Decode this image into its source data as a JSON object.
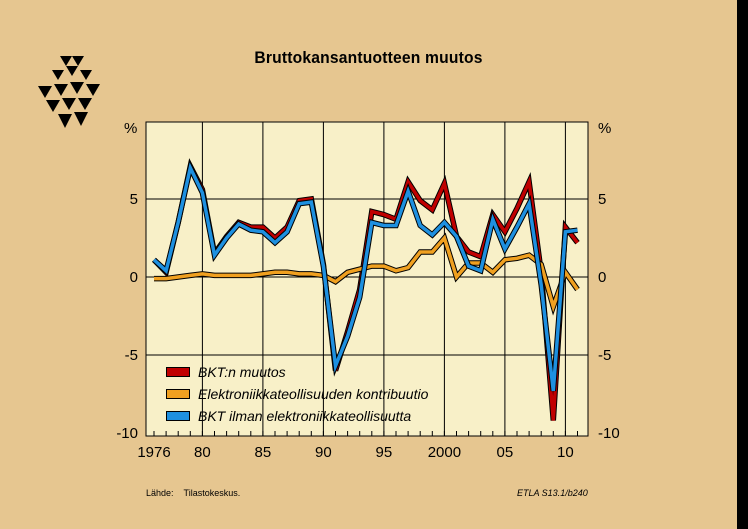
{
  "chart_data": {
    "type": "line",
    "title": "Bruttokansantuotteen muutos",
    "ylabel_left": "%",
    "ylabel_right": "%",
    "xlabel": "",
    "ylim": [
      -10,
      10
    ],
    "yticks": [
      -10,
      -5,
      0,
      5
    ],
    "xlim": [
      1976,
      2011
    ],
    "xticks": [
      {
        "value": 1976,
        "label": "1976"
      },
      {
        "value": 1980,
        "label": "80"
      },
      {
        "value": 1985,
        "label": "85"
      },
      {
        "value": 1990,
        "label": "90"
      },
      {
        "value": 1995,
        "label": "95"
      },
      {
        "value": 2000,
        "label": "2000"
      },
      {
        "value": 2005,
        "label": "05"
      },
      {
        "value": 2010,
        "label": "10"
      }
    ],
    "grid": true,
    "legend_position": "bottom-left",
    "x": [
      1976,
      1977,
      1978,
      1979,
      1980,
      1981,
      1982,
      1983,
      1984,
      1985,
      1986,
      1987,
      1988,
      1989,
      1990,
      1991,
      1992,
      1993,
      1994,
      1995,
      1996,
      1997,
      1998,
      1999,
      2000,
      2001,
      2002,
      2003,
      2004,
      2005,
      2006,
      2007,
      2008,
      2009,
      2010,
      2011
    ],
    "series": [
      {
        "name": "BKT:n muutos",
        "color": "#c00000",
        "values": [
          1.1,
          0.3,
          3.5,
          7.1,
          5.6,
          1.5,
          2.6,
          3.5,
          3.2,
          3.2,
          2.5,
          3.2,
          4.9,
          5.0,
          0.8,
          -6.0,
          -3.5,
          -0.8,
          4.2,
          4.0,
          3.7,
          6.1,
          4.9,
          4.3,
          6.0,
          2.6,
          1.6,
          1.3,
          4.0,
          2.9,
          4.4,
          6.1,
          0.3,
          -9.2,
          3.2,
          2.2
        ]
      },
      {
        "name": "Elektroniikkateollisuuden kontribuutio",
        "color": "#f0a020",
        "values": [
          -0.1,
          -0.1,
          0.0,
          0.1,
          0.2,
          0.1,
          0.1,
          0.1,
          0.1,
          0.2,
          0.3,
          0.3,
          0.2,
          0.2,
          0.1,
          -0.3,
          0.3,
          0.5,
          0.7,
          0.7,
          0.4,
          0.6,
          1.6,
          1.6,
          2.5,
          0.0,
          0.9,
          0.9,
          0.3,
          1.1,
          1.2,
          1.4,
          0.8,
          -1.9,
          0.3,
          -0.8
        ]
      },
      {
        "name": "BKT ilman elektroniikkateollisuutta",
        "color": "#1e90e0",
        "values": [
          1.1,
          0.4,
          3.5,
          7.0,
          5.4,
          1.4,
          2.5,
          3.4,
          3.0,
          2.9,
          2.2,
          2.9,
          4.7,
          4.8,
          0.7,
          -5.7,
          -3.8,
          -1.3,
          3.5,
          3.3,
          3.3,
          5.5,
          3.3,
          2.7,
          3.5,
          2.6,
          0.7,
          0.4,
          3.7,
          1.8,
          3.2,
          4.7,
          -0.5,
          -7.3,
          2.9,
          3.0
        ]
      }
    ]
  },
  "footer": {
    "source_label": "Lähde:",
    "source_value": "Tilastokeskus.",
    "code": "ETLA S13.1/b240"
  }
}
